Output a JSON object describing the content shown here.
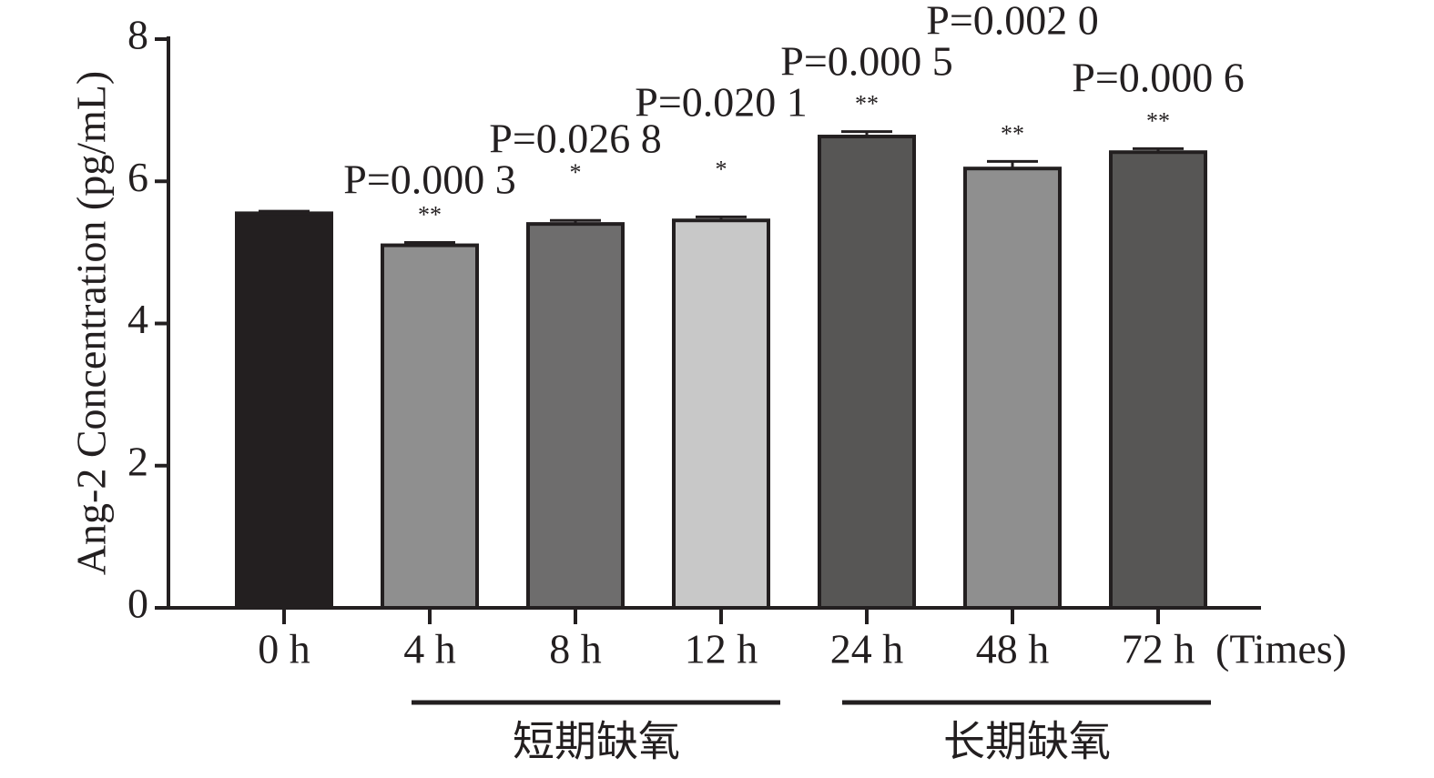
{
  "chart_data": {
    "type": "bar",
    "y_label": "Ang-2 Concentration (pg/mL)",
    "x_label": "(Times)",
    "categories": [
      "0 h",
      "4 h",
      "8 h",
      "12 h",
      "24 h",
      "48 h",
      "72 h"
    ],
    "values": [
      5.55,
      5.1,
      5.4,
      5.45,
      6.63,
      6.18,
      6.41
    ],
    "errors": [
      0.03,
      0.04,
      0.05,
      0.05,
      0.07,
      0.1,
      0.05
    ],
    "colors": [
      "#231f20",
      "#8f8f8f",
      "#6e6d6d",
      "#c8c8c8",
      "#575655",
      "#8f8f8f",
      "#575655"
    ],
    "significance": [
      null,
      "**",
      "*",
      "*",
      "**",
      "**",
      "**"
    ],
    "p_values": [
      null,
      "P=0.000 3",
      "P=0.026 8",
      "P=0.020 1",
      "P=0.000 5",
      "P=0.002 0",
      "P=0.000 6"
    ],
    "groups": [
      "短期缺氧",
      "长期缺氧"
    ],
    "ylim": [
      0,
      8
    ],
    "yticks": [
      0,
      2,
      4,
      6,
      8
    ]
  }
}
